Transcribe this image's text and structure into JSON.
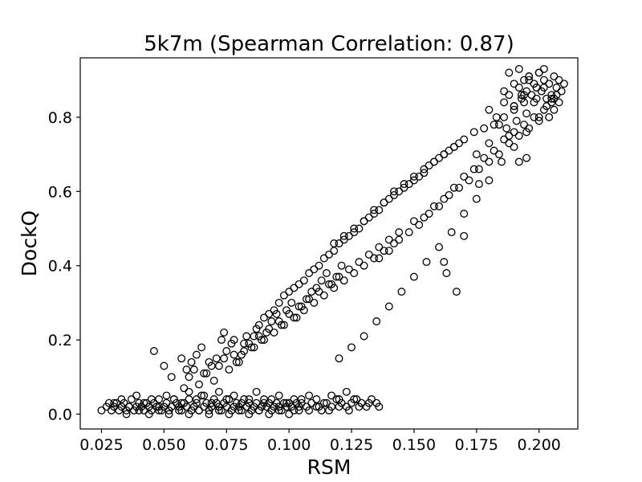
{
  "chart_data": {
    "type": "scatter",
    "title": "5k7m (Spearman Correlation: 0.87)",
    "xlabel": "RSM",
    "ylabel": "DockQ",
    "xlim": [
      0.0165,
      0.2155
    ],
    "ylim": [
      -0.04,
      0.96
    ],
    "xticks": [
      "0.025",
      "0.050",
      "0.075",
      "0.100",
      "0.125",
      "0.150",
      "0.175",
      "0.200"
    ],
    "yticks": [
      "0.0",
      "0.2",
      "0.4",
      "0.6",
      "0.8"
    ],
    "grid": false,
    "marker": "hollow-circle",
    "marker_color": "#000000",
    "series": [
      {
        "x": [
          0.025,
          0.027,
          0.028,
          0.029,
          0.03,
          0.031,
          0.032,
          0.033,
          0.034,
          0.035,
          0.036,
          0.037,
          0.038,
          0.039,
          0.04,
          0.041,
          0.042,
          0.043,
          0.044,
          0.045,
          0.046,
          0.047,
          0.048,
          0.049,
          0.05,
          0.051,
          0.052,
          0.053,
          0.054,
          0.055,
          0.056,
          0.057,
          0.058,
          0.059,
          0.06,
          0.061,
          0.062,
          0.063,
          0.064,
          0.065,
          0.066,
          0.067,
          0.068,
          0.069,
          0.07,
          0.071,
          0.072,
          0.073,
          0.074,
          0.075,
          0.076,
          0.077,
          0.078,
          0.079,
          0.08,
          0.081,
          0.082,
          0.083,
          0.084,
          0.085,
          0.086,
          0.087,
          0.088,
          0.089,
          0.09,
          0.091,
          0.092,
          0.093,
          0.094,
          0.095,
          0.096,
          0.097,
          0.098,
          0.099,
          0.1,
          0.101,
          0.102,
          0.103,
          0.104,
          0.105,
          0.107,
          0.109,
          0.111,
          0.113,
          0.115,
          0.117,
          0.119,
          0.121,
          0.123,
          0.125,
          0.127,
          0.129,
          0.131,
          0.133,
          0.135,
          0.03,
          0.033,
          0.036,
          0.039,
          0.042,
          0.045,
          0.048,
          0.051,
          0.054,
          0.057,
          0.06,
          0.063,
          0.066,
          0.069,
          0.072,
          0.075,
          0.078,
          0.081,
          0.084,
          0.087,
          0.09,
          0.093,
          0.096,
          0.099,
          0.102,
          0.105,
          0.108,
          0.111,
          0.114,
          0.117,
          0.12,
          0.123,
          0.126,
          0.129,
          0.035,
          0.04,
          0.044,
          0.048,
          0.052,
          0.056,
          0.06,
          0.064,
          0.068,
          0.072,
          0.076,
          0.08,
          0.084,
          0.088,
          0.092,
          0.096,
          0.1,
          0.104,
          0.108,
          0.112,
          0.116,
          0.12,
          0.124,
          0.128,
          0.132,
          0.136,
          0.046,
          0.05,
          0.053,
          0.057,
          0.059,
          0.061,
          0.063,
          0.065,
          0.067,
          0.069,
          0.071,
          0.073,
          0.075,
          0.077,
          0.079,
          0.081,
          0.083,
          0.085,
          0.087,
          0.089,
          0.091,
          0.093,
          0.095,
          0.097,
          0.099,
          0.101,
          0.103,
          0.105,
          0.107,
          0.109,
          0.111,
          0.113,
          0.115,
          0.117,
          0.119,
          0.121,
          0.058,
          0.06,
          0.062,
          0.064,
          0.066,
          0.068,
          0.07,
          0.072,
          0.074,
          0.076,
          0.078,
          0.08,
          0.082,
          0.084,
          0.086,
          0.088,
          0.09,
          0.092,
          0.094,
          0.096,
          0.098,
          0.1,
          0.102,
          0.104,
          0.106,
          0.108,
          0.11,
          0.112,
          0.114,
          0.116,
          0.118,
          0.12,
          0.122,
          0.124,
          0.126,
          0.128,
          0.13,
          0.132,
          0.134,
          0.136,
          0.138,
          0.14,
          0.142,
          0.144,
          0.074,
          0.078,
          0.082,
          0.086,
          0.088,
          0.09,
          0.092,
          0.094,
          0.096,
          0.098,
          0.1,
          0.102,
          0.104,
          0.106,
          0.108,
          0.11,
          0.112,
          0.114,
          0.116,
          0.118,
          0.12,
          0.122,
          0.124,
          0.126,
          0.128,
          0.13,
          0.132,
          0.134,
          0.136,
          0.138,
          0.14,
          0.142,
          0.144,
          0.146,
          0.148,
          0.15,
          0.152,
          0.154,
          0.156,
          0.158,
          0.16,
          0.162,
          0.164,
          0.166,
          0.168,
          0.118,
          0.122,
          0.126,
          0.13,
          0.134,
          0.138,
          0.142,
          0.146,
          0.15,
          0.154,
          0.158,
          0.162,
          0.166,
          0.17,
          0.174,
          0.178,
          0.182,
          0.186,
          0.19,
          0.194,
          0.136,
          0.14,
          0.144,
          0.148,
          0.152,
          0.156,
          0.16,
          0.164,
          0.168,
          0.172,
          0.176,
          0.18,
          0.184,
          0.188,
          0.192,
          0.196,
          0.2,
          0.12,
          0.125,
          0.13,
          0.135,
          0.14,
          0.145,
          0.15,
          0.155,
          0.16,
          0.165,
          0.17,
          0.175,
          0.18,
          0.185,
          0.19,
          0.195,
          0.2,
          0.205,
          0.15,
          0.154,
          0.158,
          0.162,
          0.166,
          0.17,
          0.174,
          0.178,
          0.182,
          0.186,
          0.19,
          0.194,
          0.198,
          0.202,
          0.206,
          0.18,
          0.183,
          0.186,
          0.188,
          0.19,
          0.192,
          0.193,
          0.194,
          0.195,
          0.196,
          0.197,
          0.198,
          0.199,
          0.2,
          0.201,
          0.202,
          0.203,
          0.204,
          0.205,
          0.206,
          0.207,
          0.208,
          0.209,
          0.21,
          0.186,
          0.188,
          0.19,
          0.192,
          0.194,
          0.196,
          0.198,
          0.2,
          0.202,
          0.204,
          0.206,
          0.19,
          0.193,
          0.196,
          0.199,
          0.202,
          0.205,
          0.208,
          0.184,
          0.187,
          0.191,
          0.195,
          0.199,
          0.203,
          0.207,
          0.192,
          0.195,
          0.188,
          0.175,
          0.18,
          0.167,
          0.163,
          0.162,
          0.17,
          0.176
        ],
        "y": [
          0.01,
          0.02,
          0.03,
          0.01,
          0.02,
          0.03,
          0.01,
          0.02,
          0.03,
          0.01,
          0.02,
          0.04,
          0.01,
          0.02,
          0.03,
          0.02,
          0.01,
          0.03,
          0.02,
          0.01,
          0.03,
          0.02,
          0.04,
          0.01,
          0.02,
          0.03,
          0.01,
          0.02,
          0.04,
          0.03,
          0.02,
          0.01,
          0.03,
          0.02,
          0.04,
          0.01,
          0.02,
          0.03,
          0.01,
          0.05,
          0.02,
          0.03,
          0.01,
          0.02,
          0.04,
          0.03,
          0.02,
          0.01,
          0.03,
          0.02,
          0.04,
          0.01,
          0.02,
          0.03,
          0.02,
          0.01,
          0.04,
          0.02,
          0.03,
          0.01,
          0.02,
          0.03,
          0.01,
          0.02,
          0.04,
          0.02,
          0.03,
          0.01,
          0.02,
          0.03,
          0.02,
          0.01,
          0.03,
          0.02,
          0.03,
          0.02,
          0.01,
          0.03,
          0.02,
          0.04,
          0.02,
          0.03,
          0.02,
          0.01,
          0.03,
          0.02,
          0.04,
          0.03,
          0.02,
          0.03,
          0.04,
          0.03,
          0.02,
          0.04,
          0.03,
          0.03,
          0.04,
          0.02,
          0.05,
          0.03,
          0.04,
          0.02,
          0.05,
          0.04,
          0.03,
          0.06,
          0.04,
          0.05,
          0.03,
          0.06,
          0.04,
          0.05,
          0.03,
          0.04,
          0.06,
          0.03,
          0.04,
          0.05,
          0.03,
          0.04,
          0.03,
          0.05,
          0.04,
          0.03,
          0.05,
          0.04,
          0.06,
          0.04,
          0.03,
          0.0,
          0.01,
          0.0,
          0.01,
          0.0,
          0.01,
          0.0,
          0.01,
          0.0,
          0.01,
          0.0,
          0.01,
          0.0,
          0.01,
          0.0,
          0.01,
          0.0,
          0.01,
          0.01,
          0.02,
          0.01,
          0.02,
          0.01,
          0.02,
          0.03,
          0.02,
          0.17,
          0.13,
          0.1,
          0.15,
          0.12,
          0.14,
          0.16,
          0.18,
          0.11,
          0.13,
          0.15,
          0.2,
          0.17,
          0.19,
          0.14,
          0.16,
          0.21,
          0.18,
          0.23,
          0.2,
          0.22,
          0.25,
          0.27,
          0.24,
          0.28,
          0.3,
          0.26,
          0.29,
          0.31,
          0.33,
          0.34,
          0.36,
          0.38,
          0.35,
          0.37,
          0.4,
          0.07,
          0.1,
          0.12,
          0.08,
          0.11,
          0.14,
          0.09,
          0.13,
          0.15,
          0.12,
          0.16,
          0.14,
          0.17,
          0.19,
          0.18,
          0.21,
          0.2,
          0.23,
          0.22,
          0.25,
          0.24,
          0.27,
          0.26,
          0.29,
          0.28,
          0.31,
          0.3,
          0.33,
          0.32,
          0.35,
          0.34,
          0.37,
          0.36,
          0.39,
          0.38,
          0.41,
          0.4,
          0.43,
          0.42,
          0.45,
          0.44,
          0.47,
          0.46,
          0.49,
          0.22,
          0.2,
          0.19,
          0.21,
          0.24,
          0.26,
          0.27,
          0.28,
          0.3,
          0.32,
          0.33,
          0.34,
          0.35,
          0.36,
          0.38,
          0.39,
          0.4,
          0.42,
          0.43,
          0.44,
          0.46,
          0.47,
          0.48,
          0.49,
          0.5,
          0.52,
          0.53,
          0.54,
          0.55,
          0.57,
          0.58,
          0.59,
          0.6,
          0.61,
          0.62,
          0.63,
          0.64,
          0.65,
          0.67,
          0.68,
          0.69,
          0.7,
          0.71,
          0.72,
          0.73,
          0.46,
          0.48,
          0.5,
          0.52,
          0.55,
          0.57,
          0.6,
          0.62,
          0.64,
          0.66,
          0.68,
          0.7,
          0.72,
          0.74,
          0.76,
          0.77,
          0.78,
          0.8,
          0.82,
          0.84,
          0.42,
          0.44,
          0.47,
          0.49,
          0.51,
          0.54,
          0.56,
          0.59,
          0.61,
          0.63,
          0.66,
          0.68,
          0.7,
          0.73,
          0.75,
          0.77,
          0.79,
          0.15,
          0.18,
          0.21,
          0.25,
          0.29,
          0.33,
          0.37,
          0.41,
          0.45,
          0.49,
          0.54,
          0.58,
          0.63,
          0.68,
          0.72,
          0.76,
          0.8,
          0.84,
          0.52,
          0.53,
          0.56,
          0.58,
          0.61,
          0.64,
          0.66,
          0.69,
          0.71,
          0.74,
          0.76,
          0.78,
          0.8,
          0.82,
          0.85,
          0.82,
          0.8,
          0.84,
          0.86,
          0.83,
          0.88,
          0.85,
          0.9,
          0.87,
          0.91,
          0.86,
          0.89,
          0.88,
          0.92,
          0.87,
          0.9,
          0.85,
          0.89,
          0.86,
          0.91,
          0.88,
          0.84,
          0.87,
          0.89,
          0.87,
          0.92,
          0.83,
          0.93,
          0.86,
          0.9,
          0.84,
          0.92,
          0.88,
          0.8,
          0.82,
          0.89,
          0.86,
          0.91,
          0.88,
          0.93,
          0.85,
          0.9,
          0.78,
          0.77,
          0.79,
          0.81,
          0.85,
          0.83,
          0.86,
          0.68,
          0.69,
          0.75,
          0.7,
          0.73,
          0.33,
          0.38,
          0.41,
          0.48,
          0.62
        ]
      }
    ]
  }
}
